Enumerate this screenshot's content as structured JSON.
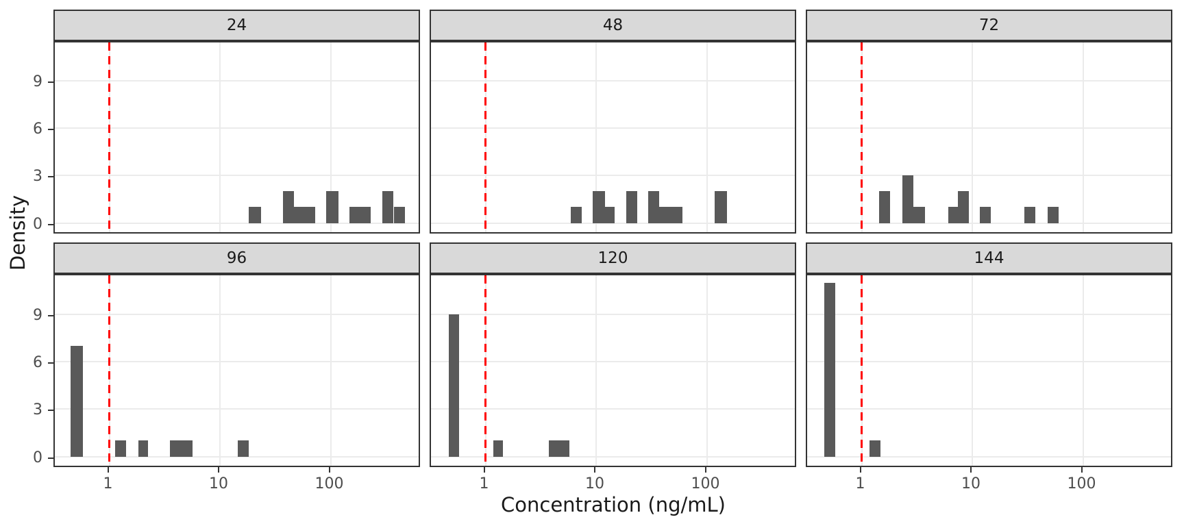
{
  "figure": {
    "background": "#ffffff"
  },
  "chart_data": {
    "type": "bar",
    "subtype": "faceted-histogram",
    "title": "",
    "xlabel": "Concentration (ng/mL)",
    "ylabel": "Density",
    "x_scale": "log10",
    "grid": true,
    "legend": "none",
    "xlim_log10": [
      -0.49,
      2.82
    ],
    "ylim": [
      -0.58,
      11.56
    ],
    "x_ticks": [
      {
        "log10": 0,
        "label": "1"
      },
      {
        "log10": 1,
        "label": "10"
      },
      {
        "log10": 2,
        "label": "100"
      }
    ],
    "y_ticks": [
      {
        "value": 0,
        "label": "0"
      },
      {
        "value": 3,
        "label": "3"
      },
      {
        "value": 6,
        "label": "6"
      },
      {
        "value": 9,
        "label": "9"
      }
    ],
    "refline": {
      "x": 1,
      "x_log10": 0,
      "color": "#ff0000",
      "style": "dashed"
    },
    "colors": {
      "bar": "#595959",
      "strip_fill": "#d9d9d9",
      "border": "#333333",
      "gridline": "#ebebeb",
      "tick_label": "#4d4d4d",
      "axis_title": "#1a1a1a",
      "refline": "#ff0000"
    },
    "facet_variable_values": [
      "24",
      "48",
      "72",
      "96",
      "120",
      "144"
    ],
    "facets": [
      {
        "label": "24",
        "bars": [
          {
            "x0_log10": 1.26,
            "x1_log10": 1.37,
            "density": 1
          },
          {
            "x0_log10": 1.57,
            "x1_log10": 1.67,
            "density": 2
          },
          {
            "x0_log10": 1.67,
            "x1_log10": 1.86,
            "density": 1
          },
          {
            "x0_log10": 1.96,
            "x1_log10": 2.07,
            "density": 2
          },
          {
            "x0_log10": 2.17,
            "x1_log10": 2.36,
            "density": 1
          },
          {
            "x0_log10": 2.47,
            "x1_log10": 2.57,
            "density": 2
          },
          {
            "x0_log10": 2.57,
            "x1_log10": 2.67,
            "density": 1
          }
        ]
      },
      {
        "label": "48",
        "bars": [
          {
            "x0_log10": 0.77,
            "x1_log10": 0.87,
            "density": 1
          },
          {
            "x0_log10": 0.97,
            "x1_log10": 1.08,
            "density": 2
          },
          {
            "x0_log10": 1.08,
            "x1_log10": 1.17,
            "density": 1
          },
          {
            "x0_log10": 1.27,
            "x1_log10": 1.37,
            "density": 2
          },
          {
            "x0_log10": 1.47,
            "x1_log10": 1.57,
            "density": 2
          },
          {
            "x0_log10": 1.57,
            "x1_log10": 1.78,
            "density": 1
          },
          {
            "x0_log10": 2.07,
            "x1_log10": 2.18,
            "density": 2
          }
        ]
      },
      {
        "label": "72",
        "bars": [
          {
            "x0_log10": 0.16,
            "x1_log10": 0.26,
            "density": 2
          },
          {
            "x0_log10": 0.37,
            "x1_log10": 0.47,
            "density": 3
          },
          {
            "x0_log10": 0.47,
            "x1_log10": 0.57,
            "density": 1
          },
          {
            "x0_log10": 0.78,
            "x1_log10": 0.87,
            "density": 1
          },
          {
            "x0_log10": 0.87,
            "x1_log10": 0.97,
            "density": 2
          },
          {
            "x0_log10": 1.07,
            "x1_log10": 1.17,
            "density": 1
          },
          {
            "x0_log10": 1.47,
            "x1_log10": 1.57,
            "density": 1
          },
          {
            "x0_log10": 1.68,
            "x1_log10": 1.78,
            "density": 1
          }
        ]
      },
      {
        "label": "96",
        "bars": [
          {
            "x0_log10": -0.35,
            "x1_log10": -0.24,
            "density": 7
          },
          {
            "x0_log10": 0.05,
            "x1_log10": 0.15,
            "density": 1
          },
          {
            "x0_log10": 0.26,
            "x1_log10": 0.35,
            "density": 1
          },
          {
            "x0_log10": 0.55,
            "x1_log10": 0.75,
            "density": 1
          },
          {
            "x0_log10": 1.16,
            "x1_log10": 1.26,
            "density": 1
          }
        ]
      },
      {
        "label": "120",
        "bars": [
          {
            "x0_log10": -0.33,
            "x1_log10": -0.24,
            "density": 9
          },
          {
            "x0_log10": 0.07,
            "x1_log10": 0.16,
            "density": 1
          },
          {
            "x0_log10": 0.57,
            "x1_log10": 0.76,
            "density": 1
          }
        ]
      },
      {
        "label": "144",
        "bars": [
          {
            "x0_log10": -0.34,
            "x1_log10": -0.24,
            "density": 11
          },
          {
            "x0_log10": 0.07,
            "x1_log10": 0.17,
            "density": 1
          }
        ]
      }
    ]
  }
}
